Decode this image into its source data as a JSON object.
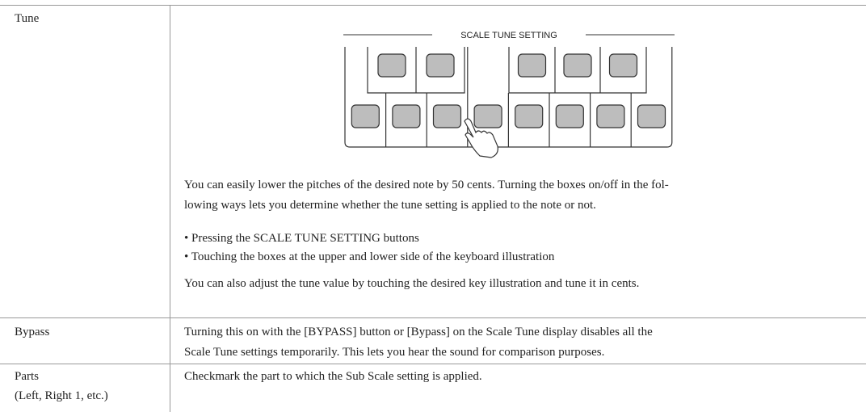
{
  "table": {
    "rows": [
      {
        "label": "Tune",
        "illustration_label": "SCALE TUNE SETTING",
        "paragraph": [
          "You can easily lower the pitches of the desired note by 50 cents. Turning the boxes on/off in the fol-",
          "lowing ways lets you determine whether the tune setting is applied to the note or not."
        ],
        "bullets": [
          "• Pressing the SCALE TUNE SETTING buttons",
          "• Touching the boxes at the upper and lower side of the keyboard illustration"
        ],
        "closing": "You can also adjust the tune value by touching the desired key illustration and tune it in cents."
      },
      {
        "label": "Bypass",
        "text": [
          "Turning this on with the [BYPASS] button or [Bypass] on the Scale Tune display disables all the",
          "Scale Tune settings temporarily. This lets you hear the sound for comparison purposes."
        ]
      },
      {
        "label": [
          "Parts",
          "(Left, Right 1, etc.)"
        ],
        "text": [
          "Checkmark the part to which the Sub Scale setting is applied."
        ]
      }
    ]
  }
}
